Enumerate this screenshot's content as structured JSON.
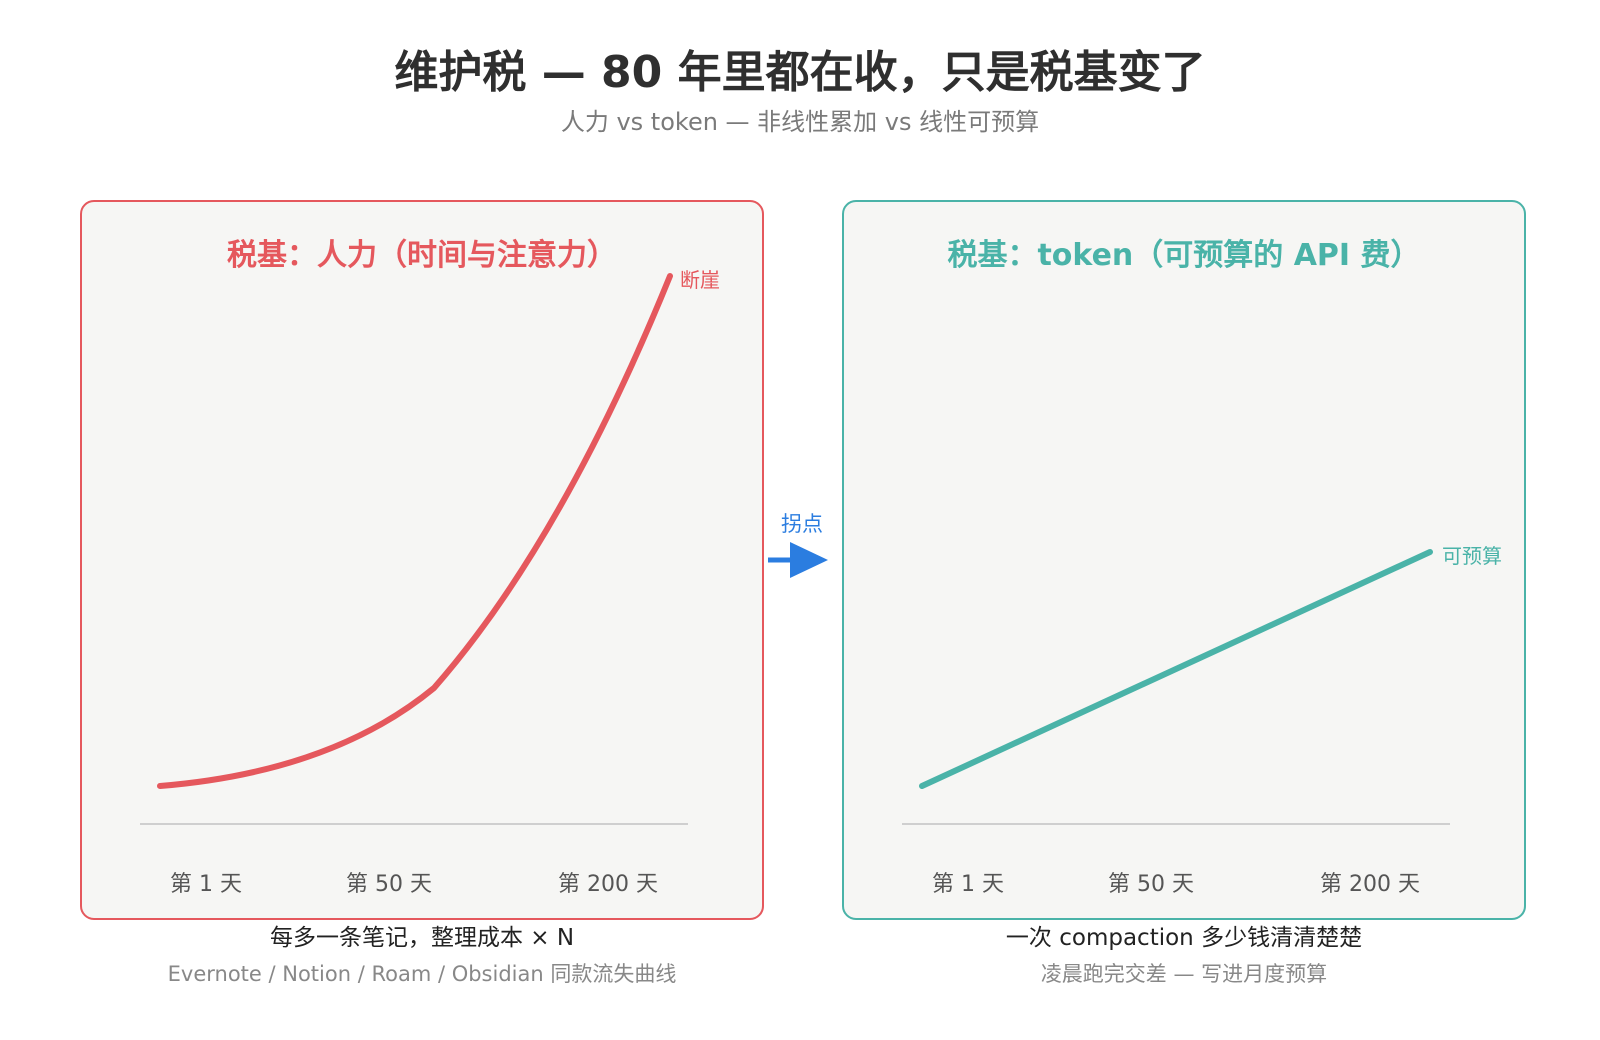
{
  "header": {
    "title": "维护税 — 80 年里都在收，只是税基变了",
    "subtitle": "人力 vs token — 非线性累加 vs 线性可预算"
  },
  "left_panel": {
    "title": "税基：人力（时间与注意力）",
    "curve_label": "断崖",
    "ticks": [
      "第 1 天",
      "第 50 天",
      "第 200 天"
    ],
    "caption": "每多一条笔记，整理成本 × N",
    "caption_sub": "Evernote / Notion / Roam / Obsidian 同款流失曲线",
    "color": "#e5585d"
  },
  "right_panel": {
    "title": "税基：token（可预算的 API 费）",
    "curve_label": "可预算",
    "ticks": [
      "第 1 天",
      "第 50 天",
      "第 200 天"
    ],
    "caption": "一次 compaction 多少钱清清楚楚",
    "caption_sub": "凌晨跑完交差 — 写进月度预算",
    "color": "#4ab3a8"
  },
  "pivot": {
    "label": "拐点",
    "color": "#2b7de0"
  }
}
